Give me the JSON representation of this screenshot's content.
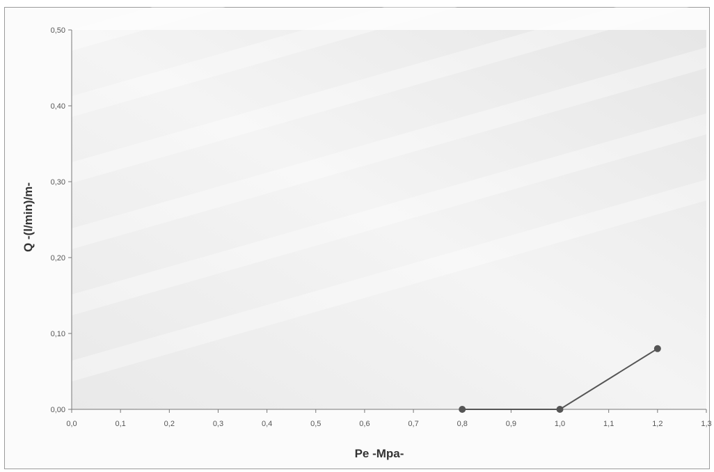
{
  "chart_data": {
    "type": "line",
    "title": "",
    "xlabel": "Pe -Mpa-",
    "ylabel": "Q -(l/min)/m-",
    "xlim": [
      0.0,
      1.3
    ],
    "ylim": [
      0.0,
      0.5
    ],
    "x_ticks": [
      "0,0",
      "0,1",
      "0,2",
      "0,3",
      "0,4",
      "0,5",
      "0,6",
      "0,7",
      "0,8",
      "0,9",
      "1,0",
      "1,1",
      "1,2",
      "1,3"
    ],
    "y_ticks": [
      "0,00",
      "0,10",
      "0,20",
      "0,30",
      "0,40",
      "0,50"
    ],
    "grid": false,
    "legend": "none",
    "series": [
      {
        "x": [
          0.8,
          1.0,
          1.2
        ],
        "y": [
          0.0,
          0.0,
          0.08
        ],
        "color": "#555555"
      }
    ]
  }
}
